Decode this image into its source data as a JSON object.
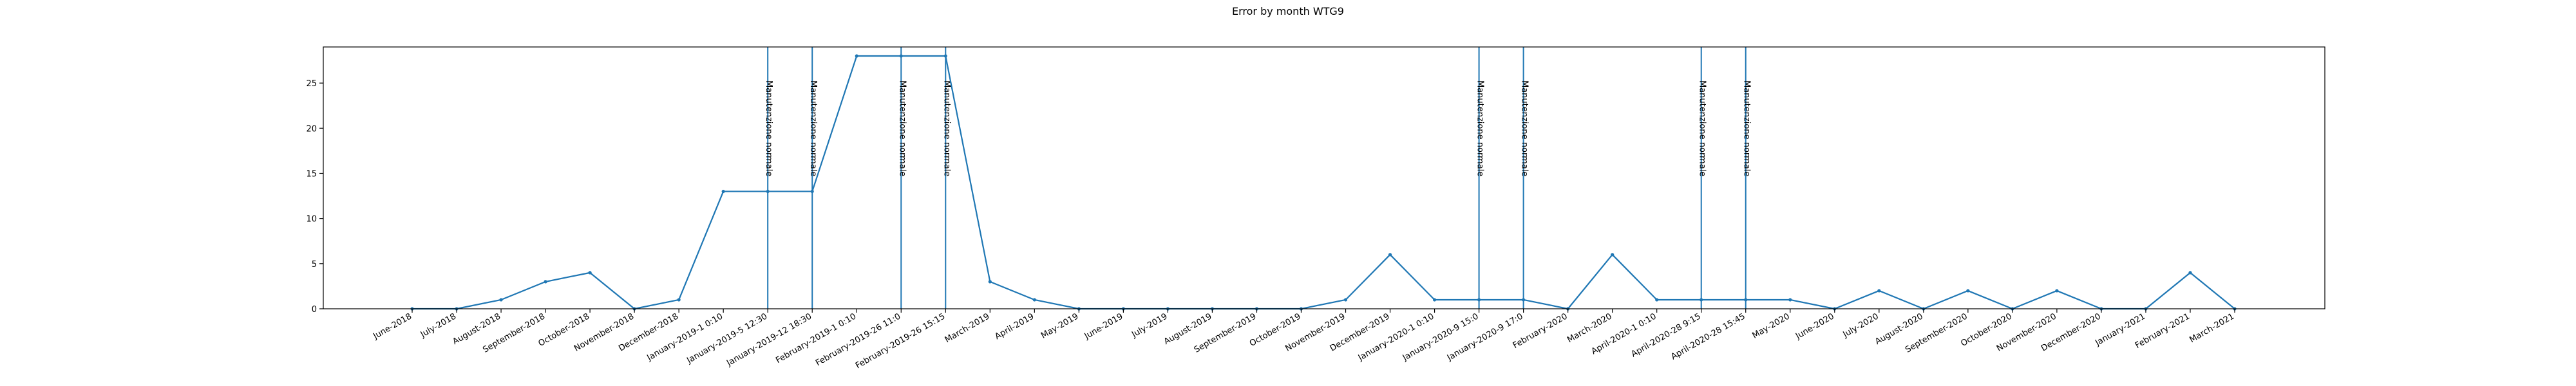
{
  "chart_data": {
    "type": "line",
    "title": "Error by month WTG9",
    "xlabel": "",
    "ylabel": "",
    "ylim": [
      0,
      29
    ],
    "yticks": [
      0,
      5,
      10,
      15,
      20,
      25
    ],
    "grid": false,
    "line_color": "#1f77b4",
    "categories": [
      "June-2018",
      "July-2018",
      "August-2018",
      "September-2018",
      "October-2018",
      "November-2018",
      "December-2018",
      "January-2019-1 0:10",
      "January-2019-5 12:30",
      "January-2019-12 18:30",
      "February-2019-1 0:10",
      "February-2019-26 11:0",
      "February-2019-26 15:15",
      "March-2019",
      "April-2019",
      "May-2019",
      "June-2019",
      "July-2019",
      "August-2019",
      "September-2019",
      "October-2019",
      "November-2019",
      "December-2019",
      "January-2020-1 0:10",
      "January-2020-9 15:0",
      "January-2020-9 17:0",
      "February-2020",
      "March-2020",
      "April-2020-1 0:10",
      "April-2020-28 9:15",
      "April-2020-28 15:45",
      "May-2020",
      "June-2020",
      "July-2020",
      "August-2020",
      "September-2020",
      "October-2020",
      "November-2020",
      "December-2020",
      "January-2021",
      "February-2021",
      "March-2021"
    ],
    "values": [
      0,
      0,
      1,
      3,
      4,
      0,
      1,
      13,
      13,
      13,
      28,
      28,
      28,
      3,
      1,
      0,
      0,
      0,
      0,
      0,
      0,
      1,
      6,
      1,
      1,
      1,
      0,
      6,
      1,
      1,
      1,
      1,
      0,
      2,
      0,
      2,
      0,
      2,
      0,
      0,
      4,
      0
    ],
    "annotations": [
      {
        "category": "January-2019-5 12:30",
        "text": "Manutenzione normale"
      },
      {
        "category": "January-2019-12 18:30",
        "text": "Manutenzione normale"
      },
      {
        "category": "February-2019-26 11:0",
        "text": "Manutenzione normale"
      },
      {
        "category": "February-2019-26 15:15",
        "text": "Manutenzione normale"
      },
      {
        "category": "January-2020-9 15:0",
        "text": "Manutenzione normale"
      },
      {
        "category": "January-2020-9 17:0",
        "text": "Manutenzione normale"
      },
      {
        "category": "April-2020-28 9:15",
        "text": "Manutenzione normale"
      },
      {
        "category": "April-2020-28 15:45",
        "text": "Manutenzione normale"
      }
    ]
  }
}
